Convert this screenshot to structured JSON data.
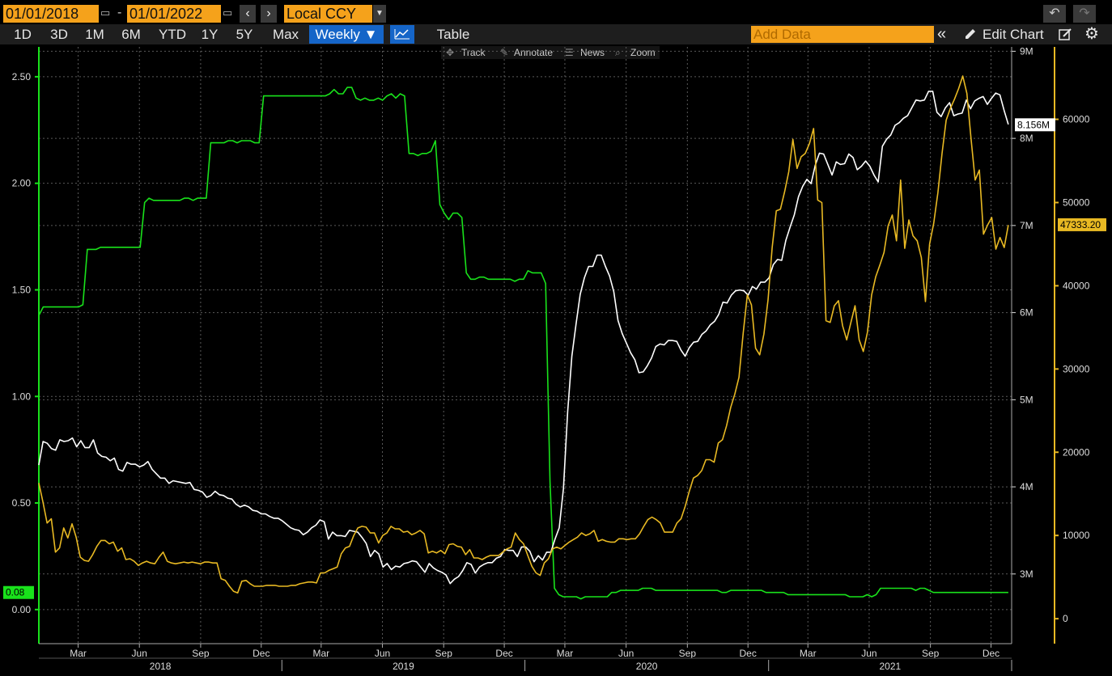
{
  "toolbar": {
    "start_date": "01/01/2018",
    "end_date": "01/01/2022",
    "dash": "-",
    "currency": "Local CCY",
    "ranges": [
      "1D",
      "3D",
      "1M",
      "6M",
      "YTD",
      "1Y",
      "5Y",
      "Max"
    ],
    "frequency": "Weekly ▼",
    "table_label": "Table",
    "add_data_placeholder": "Add Data",
    "edit_chart_label": "Edit Chart"
  },
  "chart_tools": [
    "Track",
    "Annotate",
    "News",
    "Zoom"
  ],
  "icons": [
    "calendar-icon",
    "prev-arrow-icon",
    "next-arrow-icon",
    "dropdown-arrow-icon",
    "undo-icon",
    "redo-icon",
    "line-chart-icon",
    "collapse-icon",
    "pencil-icon",
    "edit-icon",
    "gear-icon"
  ],
  "colors": {
    "green": "#19e21b",
    "white": "#ffffff",
    "gold": "#e8b923",
    "toolbar_orange": "#f5a21b",
    "selected_blue": "#1565c8"
  },
  "chart_data": {
    "type": "line",
    "x_range": [
      "2018-01-01",
      "2022-01-01"
    ],
    "x_month_labels": [
      "Mar",
      "Jun",
      "Sep",
      "Dec",
      "Mar",
      "Jun",
      "Sep",
      "Dec",
      "Mar",
      "Jun",
      "Sep",
      "Dec",
      "Mar",
      "Jun",
      "Sep",
      "Dec"
    ],
    "x_year_labels": [
      "2018",
      "2019",
      "2020",
      "2021"
    ],
    "left_axis": {
      "ticks": [
        "2.50",
        "2.00",
        "1.50",
        "1.00",
        "0.50",
        "0.00"
      ],
      "range": [
        -0.16,
        2.64
      ]
    },
    "right_axis_1": {
      "ticks": [
        "9M",
        "8M",
        "7M",
        "6M",
        "5M",
        "4M",
        "3M"
      ],
      "range": [
        2.2,
        9.05
      ]
    },
    "right_axis_2": {
      "ticks": [
        "60000",
        "50000",
        "40000",
        "30000",
        "20000",
        "10000",
        "0"
      ],
      "range": [
        -3000,
        68700
      ]
    },
    "last_value_labels": {
      "green": "0.08",
      "white": "8.156M",
      "gold": "47333.20"
    },
    "grid": true,
    "series": [
      {
        "color": "#19e21b",
        "axis": "left",
        "values": [
          1.38,
          1.42,
          1.42,
          1.42,
          1.42,
          1.42,
          1.42,
          1.42,
          1.42,
          1.42,
          1.43,
          1.69,
          1.69,
          1.69,
          1.7,
          1.7,
          1.7,
          1.7,
          1.7,
          1.7,
          1.7,
          1.7,
          1.7,
          1.7,
          1.91,
          1.93,
          1.92,
          1.92,
          1.92,
          1.92,
          1.92,
          1.92,
          1.92,
          1.93,
          1.93,
          1.92,
          1.93,
          1.93,
          1.93,
          2.19,
          2.19,
          2.19,
          2.19,
          2.2,
          2.2,
          2.19,
          2.2,
          2.2,
          2.2,
          2.19,
          2.19,
          2.41,
          2.41,
          2.41,
          2.41,
          2.41,
          2.41,
          2.41,
          2.41,
          2.41,
          2.41,
          2.41,
          2.41,
          2.41,
          2.41,
          2.41,
          2.42,
          2.44,
          2.42,
          2.42,
          2.45,
          2.45,
          2.4,
          2.39,
          2.4,
          2.39,
          2.39,
          2.4,
          2.39,
          2.41,
          2.42,
          2.4,
          2.42,
          2.41,
          2.14,
          2.14,
          2.13,
          2.14,
          2.14,
          2.15,
          2.2,
          1.9,
          1.86,
          1.83,
          1.86,
          1.86,
          1.84,
          1.58,
          1.55,
          1.55,
          1.56,
          1.56,
          1.55,
          1.55,
          1.55,
          1.55,
          1.55,
          1.55,
          1.54,
          1.55,
          1.55,
          1.59,
          1.58,
          1.58,
          1.58,
          1.53,
          0.6,
          0.1,
          0.07,
          0.06,
          0.06,
          0.06,
          0.06,
          0.05,
          0.06,
          0.06,
          0.06,
          0.06,
          0.06,
          0.06,
          0.08,
          0.08,
          0.09,
          0.09,
          0.09,
          0.09,
          0.09,
          0.1,
          0.1,
          0.1,
          0.09,
          0.09,
          0.09,
          0.09,
          0.09,
          0.09,
          0.09,
          0.09,
          0.09,
          0.09,
          0.09,
          0.09,
          0.09,
          0.09,
          0.09,
          0.08,
          0.08,
          0.09,
          0.09,
          0.09,
          0.09,
          0.09,
          0.09,
          0.09,
          0.09,
          0.08,
          0.08,
          0.08,
          0.08,
          0.08,
          0.07,
          0.07,
          0.07,
          0.07,
          0.07,
          0.07,
          0.07,
          0.07,
          0.07,
          0.07,
          0.07,
          0.07,
          0.07,
          0.07,
          0.06,
          0.06,
          0.06,
          0.06,
          0.07,
          0.06,
          0.07,
          0.1,
          0.1,
          0.1,
          0.1,
          0.1,
          0.1,
          0.1,
          0.1,
          0.09,
          0.1,
          0.1,
          0.09,
          0.08,
          0.08,
          0.08,
          0.08,
          0.08,
          0.08,
          0.08,
          0.08,
          0.08,
          0.08,
          0.08,
          0.08,
          0.08,
          0.08,
          0.08,
          0.08,
          0.08,
          0.08
        ]
      },
      {
        "color": "#ffffff",
        "axis": "right_1",
        "values": [
          4.25,
          4.52,
          4.5,
          4.44,
          4.42,
          4.54,
          4.52,
          4.53,
          4.56,
          4.46,
          4.53,
          4.45,
          4.45,
          4.54,
          4.39,
          4.35,
          4.34,
          4.3,
          4.33,
          4.2,
          4.18,
          4.28,
          4.26,
          4.26,
          4.23,
          4.25,
          4.29,
          4.2,
          4.15,
          4.1,
          4.1,
          4.04,
          4.07,
          4.06,
          4.05,
          4.04,
          4.05,
          3.97,
          3.96,
          3.94,
          3.88,
          3.9,
          3.95,
          3.91,
          3.9,
          3.87,
          3.86,
          3.8,
          3.77,
          3.79,
          3.77,
          3.73,
          3.72,
          3.69,
          3.69,
          3.66,
          3.64,
          3.64,
          3.61,
          3.57,
          3.53,
          3.51,
          3.5,
          3.45,
          3.48,
          3.53,
          3.56,
          3.62,
          3.6,
          3.4,
          3.48,
          3.44,
          3.44,
          3.43,
          3.5,
          3.49,
          3.48,
          3.42,
          3.35,
          3.2,
          3.27,
          3.23,
          3.08,
          3.12,
          3.05,
          3.09,
          3.08,
          3.12,
          3.13,
          3.15,
          3.14,
          3.08,
          3.02,
          3.12,
          3.07,
          3.04,
          3.02,
          2.99,
          2.89,
          2.94,
          2.97,
          3.04,
          3.13,
          3.11,
          3.01,
          3.08,
          3.11,
          3.13,
          3.13,
          3.18,
          3.2,
          3.28,
          3.27,
          3.27,
          3.2,
          3.31,
          3.31,
          3.26,
          3.14,
          3.21,
          3.16,
          3.25,
          3.25,
          3.4,
          3.53,
          3.98,
          4.86,
          5.5,
          5.87,
          6.21,
          6.4,
          6.53,
          6.53,
          6.66,
          6.66,
          6.53,
          6.42,
          6.24,
          5.91,
          5.76,
          5.65,
          5.54,
          5.46,
          5.31,
          5.32,
          5.39,
          5.48,
          5.61,
          5.64,
          5.63,
          5.68,
          5.68,
          5.67,
          5.57,
          5.5,
          5.6,
          5.66,
          5.67,
          5.75,
          5.79,
          5.86,
          5.9,
          5.98,
          6.12,
          6.11,
          6.2,
          6.25,
          6.26,
          6.25,
          6.2,
          6.3,
          6.27,
          6.35,
          6.35,
          6.4,
          6.55,
          6.61,
          6.6,
          6.83,
          6.98,
          7.12,
          7.33,
          7.45,
          7.53,
          7.48,
          7.69,
          7.83,
          7.82,
          7.7,
          7.58,
          7.73,
          7.7,
          7.71,
          7.82,
          7.78,
          7.64,
          7.68,
          7.74,
          7.68,
          7.58,
          7.5,
          7.91,
          7.99,
          8.04,
          8.15,
          8.18,
          8.23,
          8.26,
          8.35,
          8.44,
          8.43,
          8.44,
          8.54,
          8.54,
          8.3,
          8.25,
          8.35,
          8.41,
          8.26,
          8.28,
          8.29,
          8.44,
          8.34,
          8.43,
          8.46,
          8.48,
          8.39,
          8.46,
          8.52,
          8.5,
          8.32,
          8.16
        ]
      },
      {
        "color": "#e8b923",
        "axis": "right_2",
        "values": [
          16300,
          14000,
          11500,
          12000,
          8000,
          8500,
          10900,
          9700,
          11400,
          9800,
          7400,
          7000,
          6900,
          7700,
          8700,
          9400,
          9400,
          9000,
          9200,
          8100,
          8500,
          7100,
          7200,
          6900,
          6400,
          6700,
          6900,
          6700,
          6600,
          7400,
          8000,
          6900,
          6700,
          6600,
          6700,
          6800,
          6700,
          6800,
          6700,
          6600,
          6800,
          6800,
          6700,
          6700,
          4800,
          4600,
          3900,
          3300,
          3100,
          4500,
          4600,
          4200,
          3900,
          3900,
          3900,
          4000,
          4000,
          4000,
          3900,
          3900,
          3900,
          4000,
          4000,
          4200,
          4300,
          4400,
          4400,
          4300,
          5500,
          5500,
          5800,
          6000,
          6200,
          7800,
          8500,
          8700,
          10000,
          10900,
          11100,
          11000,
          10300,
          10300,
          9100,
          10000,
          10300,
          11100,
          10800,
          10800,
          10400,
          10500,
          10100,
          10300,
          10600,
          10200,
          7900,
          8100,
          7900,
          8200,
          7800,
          8900,
          9000,
          8700,
          8600,
          7700,
          8300,
          7300,
          7300,
          7100,
          7400,
          7600,
          7600,
          7600,
          8000,
          8400,
          8600,
          10300,
          9500,
          9000,
          7600,
          6300,
          5500,
          5200,
          6700,
          7200,
          8400,
          8600,
          8400,
          8800,
          9200,
          9500,
          9800,
          10300,
          10000,
          10200,
          10600,
          9300,
          9500,
          9300,
          9200,
          9200,
          9600,
          9600,
          9500,
          9600,
          9600,
          10200,
          11100,
          11900,
          12200,
          11900,
          11500,
          10400,
          10400,
          10400,
          11500,
          12000,
          13500,
          15300,
          16900,
          17200,
          17800,
          19100,
          19100,
          18800,
          21100,
          21500,
          23200,
          25400,
          27000,
          29000,
          34300,
          38900,
          37700,
          32500,
          31700,
          34200,
          38300,
          44600,
          49000,
          49200,
          51300,
          53700,
          57600,
          54100,
          55500,
          55900,
          57100,
          58900,
          50300,
          50000,
          35800,
          35600,
          37600,
          38200,
          35200,
          33500,
          35600,
          37600,
          33500,
          32100,
          34400,
          38900,
          41100,
          42500,
          44000,
          47200,
          48500,
          45400,
          52700,
          44500,
          47900,
          46000,
          45400,
          43400,
          38100,
          45000,
          47500,
          51200,
          55900,
          59900,
          61300,
          62400,
          63700,
          65200,
          63100,
          57700,
          52700,
          53900,
          46200,
          47300,
          48200,
          44400,
          45800,
          44600,
          47300
        ]
      }
    ]
  }
}
